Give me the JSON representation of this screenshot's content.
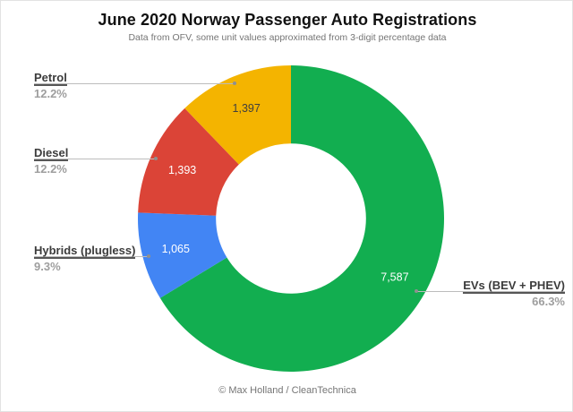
{
  "header": {
    "title": "June 2020 Norway Passenger Auto Registrations",
    "subtitle": "Data from OFV, some unit values approximated from 3-digit percentage data"
  },
  "footer": {
    "credit": "© Max Holland / CleanTechnica"
  },
  "chart_data": {
    "type": "pie",
    "subtype": "donut",
    "title": "June 2020 Norway Passenger Auto Registrations",
    "subtitle": "Data from OFV, some unit values approximated from 3-digit percentage data",
    "direction": "clockwise",
    "start_angle_deg": 0,
    "inner_radius_ratio": 0.49,
    "legend_position": "outside-callouts",
    "slices": [
      {
        "id": "evs",
        "label": "EVs (BEV + PHEV)",
        "value": 7587,
        "value_label": "7,587",
        "pct": "66.3%",
        "color": "#12AE50",
        "value_text_color": "#ffffff"
      },
      {
        "id": "hybrids",
        "label": "Hybrids (plugless)",
        "value": 1065,
        "value_label": "1,065",
        "pct": "9.3%",
        "color": "#4285F4",
        "value_text_color": "#ffffff"
      },
      {
        "id": "diesel",
        "label": "Diesel",
        "value": 1393,
        "value_label": "1,393",
        "pct": "12.2%",
        "color": "#DB4437",
        "value_text_color": "#ffffff"
      },
      {
        "id": "petrol",
        "label": "Petrol",
        "value": 1397,
        "value_label": "1,397",
        "pct": "12.2%",
        "color": "#F4B400",
        "value_text_color": "#3f3f3f"
      }
    ]
  }
}
